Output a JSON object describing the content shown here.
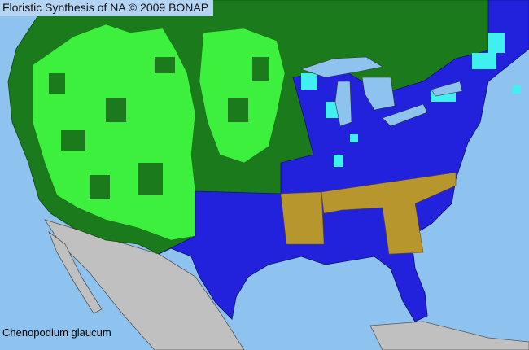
{
  "header": {
    "title": "Floristic Synthesis of NA © 2009 BONAP"
  },
  "map": {
    "species_name": "Chenopodium glaucum",
    "colors": {
      "ocean": "#8fc3ef",
      "present_native_county": "#2222dd",
      "present_state": "#1b7a1b",
      "present_county": "#3ef03e",
      "rare_county": "#40f0f0",
      "present_exotic_state": "#b8962e",
      "outside_region": "#c0c0c0"
    }
  }
}
